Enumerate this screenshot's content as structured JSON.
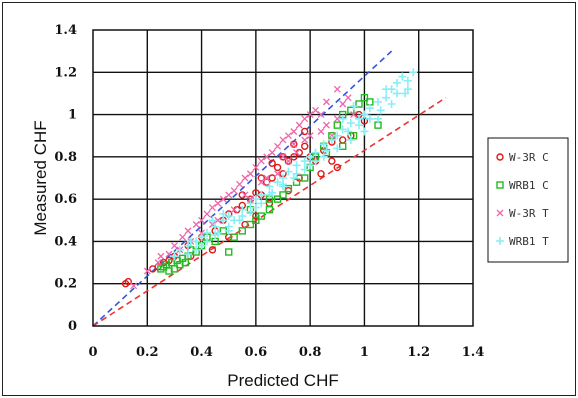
{
  "chart_data": {
    "type": "scatter",
    "xlabel": "Predicted CHF",
    "ylabel": "Measured CHF",
    "xlim": [
      0,
      1.4
    ],
    "ylim": [
      0,
      1.4
    ],
    "x_ticks": [
      "0",
      "0.2",
      "0.4",
      "0.6",
      "0.8",
      "1",
      "1.2",
      "1.4"
    ],
    "y_ticks": [
      "0",
      "0.2",
      "0.4",
      "0.6",
      "0.8",
      "1",
      "1.2",
      "1.4"
    ],
    "grid": true,
    "legend_position": "right",
    "reference_lines": [
      {
        "points": [
          [
            0,
            0
          ],
          [
            1.1,
            1.3
          ]
        ],
        "color": "#3355dd"
      },
      {
        "points": [
          [
            0,
            0
          ],
          [
            1.3,
            1.08
          ]
        ],
        "color": "#ee3333"
      }
    ],
    "series": [
      {
        "name": "W-3R C",
        "marker": "circle",
        "color": "#e01818",
        "points": [
          [
            0.12,
            0.2
          ],
          [
            0.13,
            0.21
          ],
          [
            0.22,
            0.27
          ],
          [
            0.24,
            0.28
          ],
          [
            0.26,
            0.3
          ],
          [
            0.3,
            0.33
          ],
          [
            0.35,
            0.38
          ],
          [
            0.4,
            0.42
          ],
          [
            0.45,
            0.45
          ],
          [
            0.48,
            0.5
          ],
          [
            0.5,
            0.53
          ],
          [
            0.53,
            0.55
          ],
          [
            0.55,
            0.57
          ],
          [
            0.58,
            0.6
          ],
          [
            0.6,
            0.63
          ],
          [
            0.62,
            0.62
          ],
          [
            0.64,
            0.68
          ],
          [
            0.66,
            0.7
          ],
          [
            0.68,
            0.75
          ],
          [
            0.7,
            0.72
          ],
          [
            0.72,
            0.78
          ],
          [
            0.74,
            0.8
          ],
          [
            0.76,
            0.82
          ],
          [
            0.78,
            0.85
          ],
          [
            0.8,
            0.8
          ],
          [
            0.82,
            0.78
          ],
          [
            0.85,
            0.83
          ],
          [
            0.88,
            0.87
          ],
          [
            0.9,
            0.75
          ],
          [
            0.92,
            0.88
          ],
          [
            0.95,
            0.9
          ],
          [
            0.98,
            1.0
          ],
          [
            1.0,
            0.97
          ],
          [
            0.56,
            0.48
          ],
          [
            0.6,
            0.52
          ],
          [
            0.65,
            0.58
          ],
          [
            0.72,
            0.64
          ],
          [
            0.76,
            0.7
          ],
          [
            0.84,
            0.72
          ],
          [
            0.88,
            0.78
          ],
          [
            0.44,
            0.36
          ],
          [
            0.5,
            0.42
          ],
          [
            0.36,
            0.33
          ],
          [
            0.28,
            0.31
          ],
          [
            0.7,
            0.8
          ],
          [
            0.78,
            0.92
          ],
          [
            0.62,
            0.7
          ],
          [
            0.55,
            0.62
          ],
          [
            0.66,
            0.77
          ],
          [
            0.74,
            0.86
          ]
        ]
      },
      {
        "name": "WRB1 C",
        "marker": "square",
        "color": "#22bb22",
        "points": [
          [
            0.25,
            0.27
          ],
          [
            0.27,
            0.29
          ],
          [
            0.29,
            0.3
          ],
          [
            0.3,
            0.27
          ],
          [
            0.31,
            0.31
          ],
          [
            0.32,
            0.29
          ],
          [
            0.33,
            0.32
          ],
          [
            0.35,
            0.33
          ],
          [
            0.28,
            0.26
          ],
          [
            0.26,
            0.28
          ],
          [
            0.4,
            0.38
          ],
          [
            0.45,
            0.4
          ],
          [
            0.5,
            0.35
          ],
          [
            0.52,
            0.42
          ],
          [
            0.55,
            0.45
          ],
          [
            0.58,
            0.48
          ],
          [
            0.6,
            0.5
          ],
          [
            0.62,
            0.52
          ],
          [
            0.65,
            0.55
          ],
          [
            0.68,
            0.6
          ],
          [
            0.7,
            0.62
          ],
          [
            0.72,
            0.65
          ],
          [
            0.75,
            0.68
          ],
          [
            0.78,
            0.7
          ],
          [
            0.8,
            0.75
          ],
          [
            0.82,
            0.8
          ],
          [
            0.85,
            0.85
          ],
          [
            0.88,
            0.9
          ],
          [
            0.9,
            0.95
          ],
          [
            0.92,
            1.0
          ],
          [
            0.95,
            1.02
          ],
          [
            0.98,
            1.05
          ],
          [
            1.0,
            1.08
          ],
          [
            1.02,
            1.06
          ],
          [
            0.96,
            0.9
          ],
          [
            0.92,
            0.85
          ],
          [
            1.05,
            0.95
          ],
          [
            0.86,
            0.82
          ],
          [
            0.65,
            0.6
          ],
          [
            0.58,
            0.55
          ],
          [
            0.48,
            0.45
          ],
          [
            0.42,
            0.42
          ],
          [
            0.38,
            0.35
          ],
          [
            0.34,
            0.3
          ],
          [
            0.36,
            0.36
          ]
        ]
      },
      {
        "name": "W-3R T",
        "marker": "x",
        "color": "#ee66aa",
        "points": [
          [
            0.15,
            0.19
          ],
          [
            0.2,
            0.26
          ],
          [
            0.25,
            0.33
          ],
          [
            0.3,
            0.38
          ],
          [
            0.33,
            0.42
          ],
          [
            0.35,
            0.45
          ],
          [
            0.38,
            0.48
          ],
          [
            0.4,
            0.5
          ],
          [
            0.42,
            0.53
          ],
          [
            0.44,
            0.56
          ],
          [
            0.46,
            0.58
          ],
          [
            0.48,
            0.6
          ],
          [
            0.5,
            0.62
          ],
          [
            0.52,
            0.64
          ],
          [
            0.54,
            0.67
          ],
          [
            0.56,
            0.7
          ],
          [
            0.58,
            0.72
          ],
          [
            0.6,
            0.75
          ],
          [
            0.62,
            0.78
          ],
          [
            0.64,
            0.8
          ],
          [
            0.66,
            0.82
          ],
          [
            0.68,
            0.85
          ],
          [
            0.7,
            0.88
          ],
          [
            0.72,
            0.9
          ],
          [
            0.74,
            0.92
          ],
          [
            0.76,
            0.95
          ],
          [
            0.78,
            0.98
          ],
          [
            0.8,
            1.0
          ],
          [
            0.82,
            1.02
          ],
          [
            0.84,
            1.0
          ],
          [
            0.86,
            0.95
          ],
          [
            0.88,
            0.9
          ],
          [
            0.9,
            0.98
          ],
          [
            0.92,
            1.05
          ],
          [
            0.94,
            1.08
          ],
          [
            0.96,
            1.0
          ],
          [
            0.32,
            0.36
          ],
          [
            0.36,
            0.4
          ],
          [
            0.46,
            0.5
          ],
          [
            0.52,
            0.55
          ],
          [
            0.58,
            0.6
          ],
          [
            0.64,
            0.7
          ],
          [
            0.68,
            0.72
          ],
          [
            0.72,
            0.78
          ],
          [
            0.75,
            0.82
          ],
          [
            0.78,
            0.88
          ],
          [
            0.28,
            0.34
          ],
          [
            0.24,
            0.3
          ],
          [
            0.56,
            0.62
          ],
          [
            0.62,
            0.68
          ],
          [
            0.7,
            0.8
          ],
          [
            0.74,
            0.86
          ],
          [
            0.8,
            0.9
          ],
          [
            0.84,
            0.92
          ],
          [
            0.86,
            1.06
          ],
          [
            0.9,
            1.12
          ],
          [
            0.4,
            0.44
          ],
          [
            0.44,
            0.48
          ]
        ]
      },
      {
        "name": "WRB1 T",
        "marker": "cross",
        "color": "#88eef5",
        "points": [
          [
            0.3,
            0.33
          ],
          [
            0.32,
            0.36
          ],
          [
            0.35,
            0.38
          ],
          [
            0.38,
            0.4
          ],
          [
            0.4,
            0.42
          ],
          [
            0.42,
            0.44
          ],
          [
            0.45,
            0.47
          ],
          [
            0.48,
            0.5
          ],
          [
            0.5,
            0.52
          ],
          [
            0.52,
            0.5
          ],
          [
            0.55,
            0.55
          ],
          [
            0.58,
            0.58
          ],
          [
            0.6,
            0.6
          ],
          [
            0.62,
            0.62
          ],
          [
            0.65,
            0.66
          ],
          [
            0.68,
            0.68
          ],
          [
            0.7,
            0.7
          ],
          [
            0.72,
            0.73
          ],
          [
            0.75,
            0.76
          ],
          [
            0.78,
            0.78
          ],
          [
            0.8,
            0.8
          ],
          [
            0.82,
            0.82
          ],
          [
            0.85,
            0.86
          ],
          [
            0.88,
            0.88
          ],
          [
            0.9,
            0.9
          ],
          [
            0.92,
            0.93
          ],
          [
            0.95,
            0.96
          ],
          [
            0.98,
            0.98
          ],
          [
            1.0,
            1.0
          ],
          [
            1.02,
            1.03
          ],
          [
            1.05,
            1.06
          ],
          [
            1.08,
            1.08
          ],
          [
            1.1,
            1.12
          ],
          [
            1.12,
            1.15
          ],
          [
            1.14,
            1.18
          ],
          [
            1.16,
            1.16
          ],
          [
            1.18,
            1.2
          ],
          [
            1.15,
            1.1
          ],
          [
            1.1,
            1.05
          ],
          [
            1.05,
            0.98
          ],
          [
            1.0,
            0.92
          ],
          [
            0.95,
            0.88
          ],
          [
            0.9,
            0.84
          ],
          [
            0.85,
            0.8
          ],
          [
            0.8,
            0.76
          ],
          [
            0.75,
            0.72
          ],
          [
            0.7,
            0.66
          ],
          [
            0.65,
            0.62
          ],
          [
            0.6,
            0.56
          ],
          [
            0.55,
            0.52
          ],
          [
            0.5,
            0.47
          ],
          [
            0.45,
            0.43
          ],
          [
            0.4,
            0.38
          ],
          [
            0.35,
            0.34
          ],
          [
            0.38,
            0.36
          ],
          [
            0.42,
            0.4
          ],
          [
            0.46,
            0.44
          ],
          [
            0.5,
            0.45
          ],
          [
            0.54,
            0.5
          ],
          [
            0.58,
            0.54
          ],
          [
            0.62,
            0.58
          ],
          [
            0.66,
            0.63
          ],
          [
            0.7,
            0.67
          ],
          [
            0.74,
            0.7
          ],
          [
            0.78,
            0.74
          ],
          [
            0.82,
            0.78
          ],
          [
            0.86,
            0.83
          ],
          [
            0.94,
            0.92
          ],
          [
            0.98,
            0.95
          ],
          [
            1.02,
            0.98
          ],
          [
            1.06,
            1.02
          ],
          [
            1.08,
            1.12
          ],
          [
            1.12,
            1.1
          ],
          [
            1.16,
            1.12
          ],
          [
            0.96,
            1.04
          ],
          [
            0.92,
            0.98
          ],
          [
            0.44,
            0.5
          ],
          [
            0.48,
            0.53
          ],
          [
            0.36,
            0.4
          ]
        ]
      }
    ]
  }
}
